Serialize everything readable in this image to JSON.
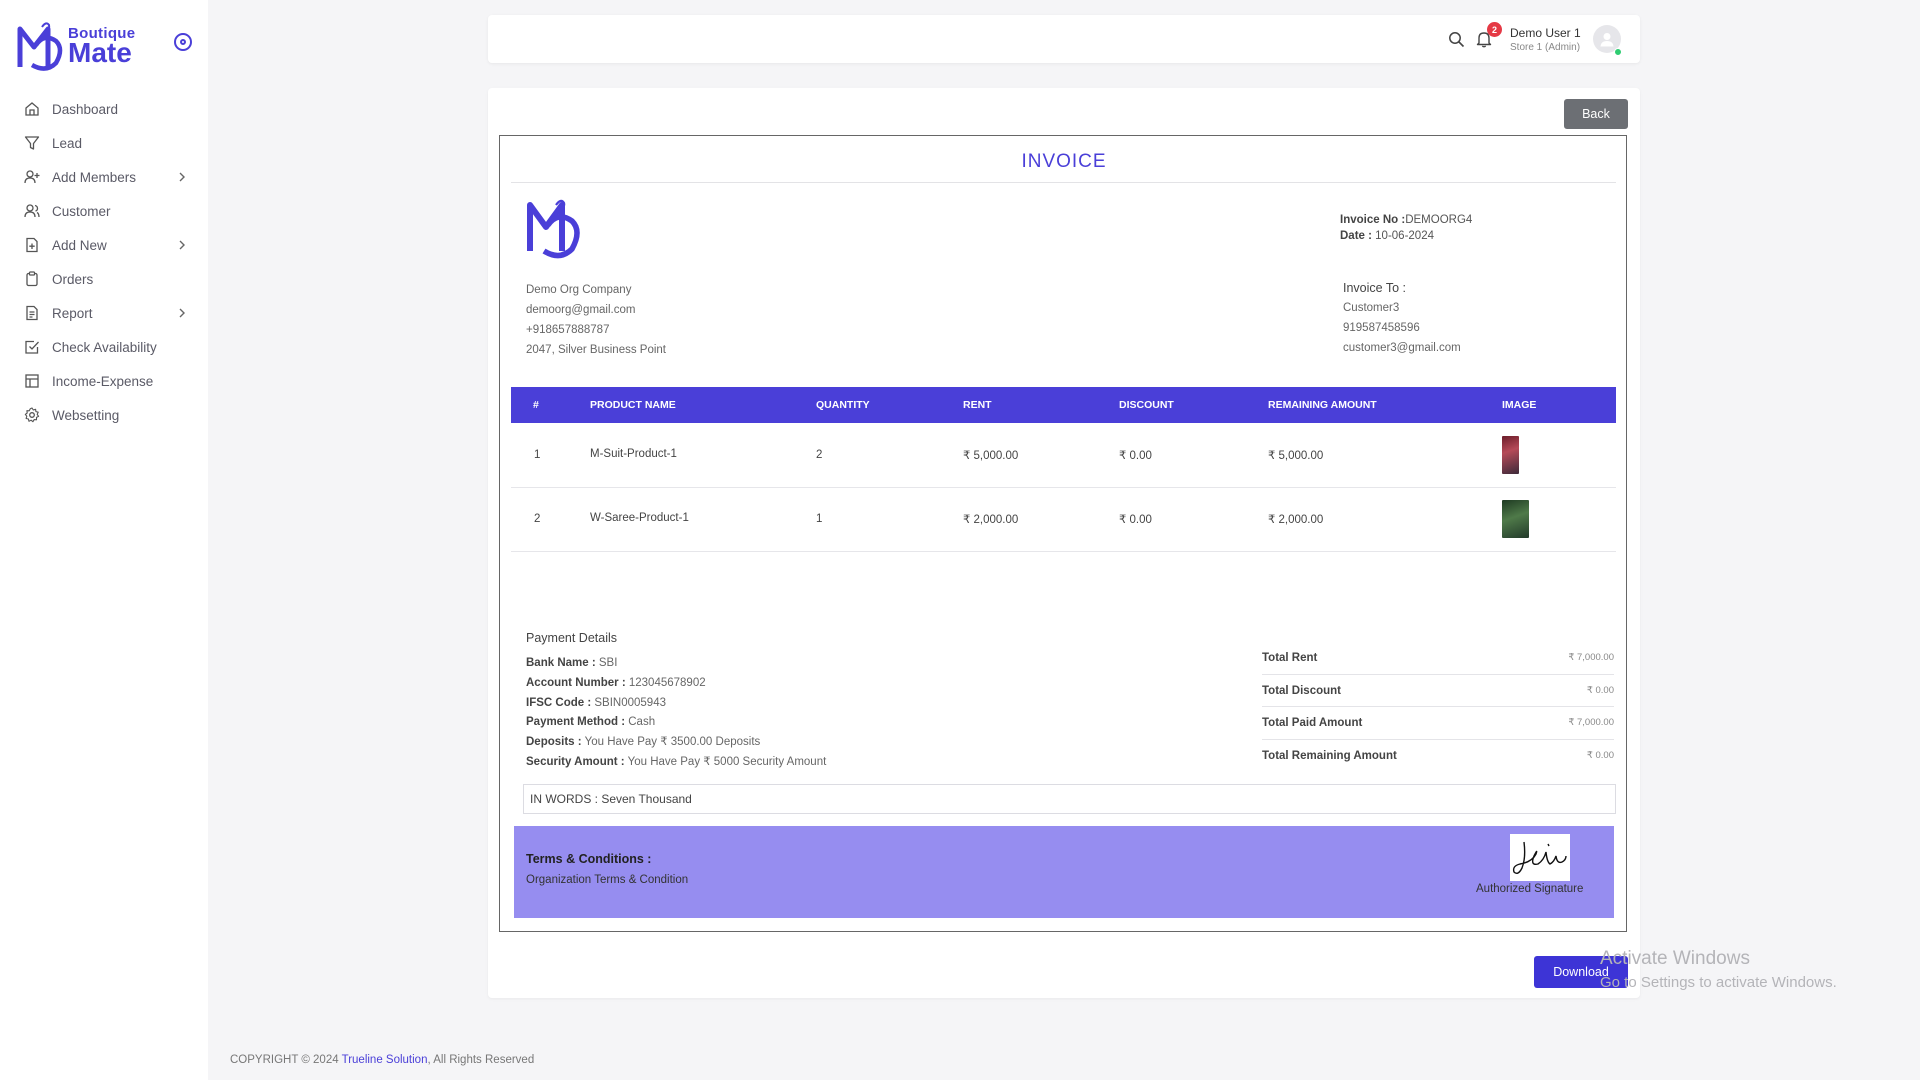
{
  "brand": {
    "top": "Boutique",
    "bottom": "Mate"
  },
  "sidebar": {
    "items": [
      {
        "label": "Dashboard",
        "icon": "home-icon",
        "has_submenu": false
      },
      {
        "label": "Lead",
        "icon": "filter-icon",
        "has_submenu": false
      },
      {
        "label": "Add Members",
        "icon": "user-plus-icon",
        "has_submenu": true
      },
      {
        "label": "Customer",
        "icon": "users-icon",
        "has_submenu": false
      },
      {
        "label": "Add New",
        "icon": "file-plus-icon",
        "has_submenu": true
      },
      {
        "label": "Orders",
        "icon": "clipboard-icon",
        "has_submenu": false
      },
      {
        "label": "Report",
        "icon": "file-text-icon",
        "has_submenu": true
      },
      {
        "label": "Check Availability",
        "icon": "check-square-icon",
        "has_submenu": false
      },
      {
        "label": "Income-Expense",
        "icon": "table-icon",
        "has_submenu": false
      },
      {
        "label": "Websetting",
        "icon": "gear-icon",
        "has_submenu": false
      }
    ]
  },
  "header": {
    "notification_count": "2",
    "user_name": "Demo User 1",
    "user_role": "Store 1 (Admin)"
  },
  "invoice": {
    "back_label": "Back",
    "title": "INVOICE",
    "invoice_no_label": "Invoice No :",
    "invoice_no": "DEMOORG4",
    "date_label": "Date :",
    "date": "10-06-2024",
    "from": {
      "company": "Demo Org Company",
      "email": "demoorg@gmail.com",
      "phone": "+918657888787",
      "address": "2047, Silver Business Point"
    },
    "to": {
      "heading": "Invoice To :",
      "name": "Customer3",
      "phone": "919587458596",
      "email": "customer3@gmail.com"
    },
    "columns": [
      "#",
      "PRODUCT NAME",
      "QUANTITY",
      "RENT",
      "DISCOUNT",
      "REMAINING AMOUNT",
      "IMAGE"
    ],
    "rows": [
      {
        "no": "1",
        "product": "M-Suit-Product-1",
        "qty": "2",
        "rent": "₹ 5,000.00",
        "discount": "₹ 0.00",
        "remaining": "₹ 5,000.00",
        "image": "product-thumbnail-suit"
      },
      {
        "no": "2",
        "product": "W-Saree-Product-1",
        "qty": "1",
        "rent": "₹ 2,000.00",
        "discount": "₹ 0.00",
        "remaining": "₹ 2,000.00",
        "image": "product-thumbnail-saree"
      }
    ],
    "payment": {
      "heading": "Payment Details",
      "bank_label": "Bank Name :",
      "bank": "SBI",
      "account_label": "Account Number :",
      "account": "123045678902",
      "ifsc_label": "IFSC Code :",
      "ifsc": "SBIN0005943",
      "method_label": "Payment Method :",
      "method": "Cash",
      "deposits_label": "Deposits :",
      "deposits": "You Have Pay ₹ 3500.00 Deposits",
      "security_label": "Security Amount :",
      "security": "You Have Pay ₹ 5000 Security Amount"
    },
    "totals": [
      {
        "label": "Total Rent",
        "value": "₹ 7,000.00"
      },
      {
        "label": "Total Discount",
        "value": "₹ 0.00"
      },
      {
        "label": "Total Paid Amount",
        "value": "₹ 7,000.00"
      },
      {
        "label": "Total Remaining Amount",
        "value": "₹ 0.00"
      }
    ],
    "in_words": "IN WORDS : Seven Thousand",
    "terms_heading": "Terms & Conditions :",
    "terms_body": "Organization Terms & Condition",
    "signature_label": "Authorized Signature",
    "download_label": "Download"
  },
  "footer": {
    "prefix": "COPYRIGHT © 2024 ",
    "link": "Trueline Solution",
    "suffix": ", All Rights Reserved"
  },
  "watermark": {
    "line1": "Activate Windows",
    "line2": "Go to Settings to activate Windows."
  },
  "colors": {
    "accent": "#4a3fd8",
    "terms_bg": "#968df0",
    "badge": "#e53945"
  }
}
